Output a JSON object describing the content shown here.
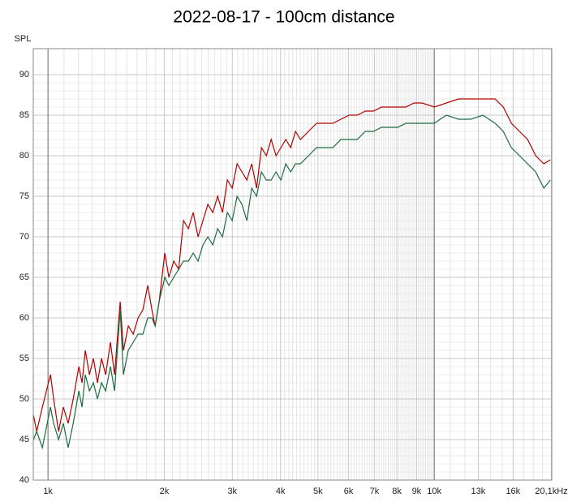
{
  "chart_data": {
    "type": "line",
    "title": "2022-08-17 - 100cm distance",
    "y_label": "SPL",
    "x": [
      917,
      935,
      967,
      1015,
      1034,
      1065,
      1096,
      1128,
      1162,
      1202,
      1225,
      1249,
      1280,
      1311,
      1343,
      1376,
      1410,
      1451,
      1487,
      1538,
      1568,
      1614,
      1662,
      1711,
      1761,
      1813,
      1858,
      1894,
      1940,
      2006,
      2056,
      2116,
      2179,
      2243,
      2309,
      2377,
      2447,
      2519,
      2594,
      2670,
      2749,
      2830,
      2913,
      2999,
      3087,
      3178,
      3272,
      3368,
      3467,
      3569,
      3674,
      3783,
      3894,
      4009,
      4127,
      4248,
      4373,
      4502,
      4725,
      4960,
      5205,
      5464,
      5734,
      6019,
      6317,
      6630,
      6958,
      7303,
      7665,
      8045,
      8444,
      8862,
      9300,
      10000,
      10752,
      11561,
      12430,
      13366,
      14372,
      15088,
      15836,
      16620,
      17444,
      18309,
      19216,
      19971
    ],
    "series": [
      {
        "color": "#b40000",
        "values": [
          48,
          46,
          49,
          53,
          50,
          46,
          49,
          47,
          50,
          54,
          52,
          56,
          53,
          55,
          52,
          55,
          53,
          57,
          53,
          62,
          56,
          59,
          58,
          60,
          61,
          64,
          61,
          59,
          62,
          68,
          65,
          67,
          66,
          72,
          71,
          73,
          70,
          72,
          74,
          73,
          75,
          73,
          77,
          76,
          79,
          78,
          77,
          79,
          76,
          81,
          80,
          82,
          80,
          81,
          82,
          81,
          83,
          82,
          83,
          84,
          84,
          84,
          84.5,
          85,
          85,
          85.5,
          85.5,
          86,
          86,
          86,
          86,
          86.5,
          86.5,
          86,
          86.5,
          87,
          87,
          87,
          87,
          86,
          84,
          83,
          82,
          80,
          79,
          79.5
        ]
      },
      {
        "color": "#1d6b40",
        "values": [
          45,
          46,
          44,
          49,
          47,
          45,
          47,
          44,
          47,
          51,
          49,
          53,
          51,
          52,
          50,
          52,
          51,
          54,
          51,
          61,
          53,
          56,
          57,
          58,
          58,
          60,
          60,
          59,
          62,
          65,
          64,
          65,
          66,
          67,
          67,
          68,
          67,
          69,
          70,
          69,
          71,
          70,
          73,
          72,
          75,
          74,
          72,
          76,
          75,
          78,
          77,
          77,
          78,
          77,
          79,
          78,
          79,
          79,
          80,
          81,
          81,
          81,
          82,
          82,
          82,
          83,
          83,
          83.5,
          83.5,
          83.5,
          84,
          84,
          84,
          84,
          85,
          84.5,
          84.5,
          85,
          84,
          83,
          81,
          80,
          79,
          78,
          76,
          77
        ]
      }
    ],
    "xlim": [
      916,
      20150
    ],
    "x_scale": "log",
    "xticks": [
      {
        "value": 1000,
        "label": "1k"
      },
      {
        "value": 2000,
        "label": "2k"
      },
      {
        "value": 3000,
        "label": "3k"
      },
      {
        "value": 4000,
        "label": "4k"
      },
      {
        "value": 5000,
        "label": "5k"
      },
      {
        "value": 6000,
        "label": "6k"
      },
      {
        "value": 7000,
        "label": "7k"
      },
      {
        "value": 8000,
        "label": "8k"
      },
      {
        "value": 9000,
        "label": "9k"
      },
      {
        "value": 10000,
        "label": "10k"
      },
      {
        "value": 13000,
        "label": "13k"
      },
      {
        "value": 16000,
        "label": "16k"
      },
      {
        "value": 20100,
        "label": "20,1kHz"
      }
    ],
    "ylim": [
      40,
      93.2
    ],
    "yticks": [
      40,
      45,
      50,
      55,
      60,
      65,
      70,
      75,
      80,
      85,
      90
    ],
    "grid": true
  }
}
